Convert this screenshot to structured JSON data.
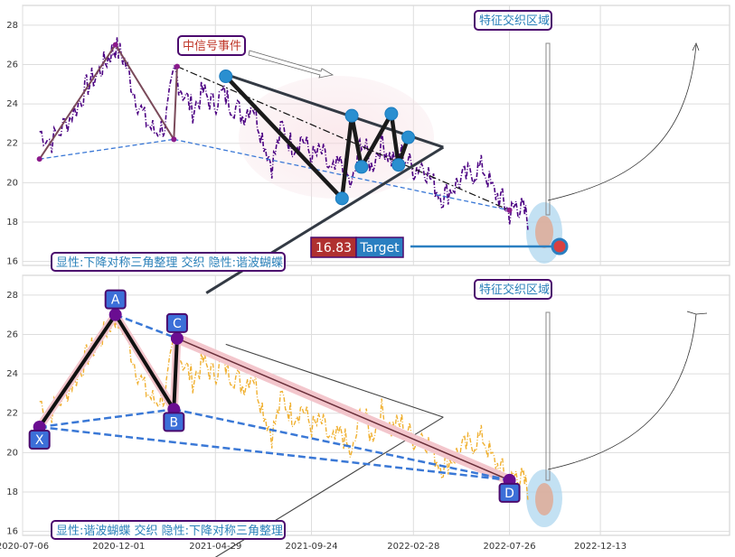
{
  "chart_data": [
    {
      "type": "line",
      "panel": "top",
      "ylim": [
        15.8,
        29
      ],
      "yticks": [
        16,
        18,
        20,
        22,
        24,
        26,
        28
      ],
      "xlim": [
        "2020-07-06",
        "2023-06-30"
      ],
      "grid": true,
      "series": [],
      "series_color": "#4b0082",
      "price_series": {
        "x": [
          "2020-08-01",
          "2020-08-20",
          "2020-09-10",
          "2020-09-30",
          "2020-10-15",
          "2020-11-01",
          "2020-11-15",
          "2020-11-26",
          "2020-12-10",
          "2020-12-25",
          "2021-01-10",
          "2021-01-25",
          "2021-02-10",
          "2021-02-25",
          "2021-03-10",
          "2021-03-25",
          "2021-04-10",
          "2021-04-25",
          "2021-05-10",
          "2021-05-25",
          "2021-06-10",
          "2021-06-25",
          "2021-07-10",
          "2021-07-25",
          "2021-08-10",
          "2021-08-25",
          "2021-09-10",
          "2021-09-24",
          "2021-10-10",
          "2021-10-25",
          "2021-11-10",
          "2021-11-25",
          "2021-12-10",
          "2021-12-25",
          "2022-01-10",
          "2022-01-25",
          "2022-02-10",
          "2022-02-28",
          "2022-03-15",
          "2022-03-31",
          "2022-04-15",
          "2022-04-30",
          "2022-05-15",
          "2022-05-31",
          "2022-06-15",
          "2022-06-30",
          "2022-07-15",
          "2022-07-26",
          "2022-08-05",
          "2022-08-15",
          "2022-08-25"
        ],
        "y": [
          22.6,
          22.1,
          23.0,
          24.0,
          25.0,
          25.6,
          26.4,
          26.9,
          26.2,
          24.6,
          23.2,
          22.6,
          22.9,
          25.6,
          24.6,
          23.7,
          24.6,
          24.0,
          24.5,
          24.0,
          23.4,
          24.1,
          22.4,
          20.9,
          22.8,
          21.9,
          22.3,
          21.3,
          21.5,
          20.4,
          21.0,
          19.7,
          22.3,
          20.8,
          22.1,
          21.2,
          21.5,
          20.7,
          21.0,
          19.9,
          19.3,
          19.8,
          20.2,
          20.5,
          20.8,
          19.6,
          19.1,
          18.4,
          18.9,
          18.6,
          18.1
        ]
      },
      "pattern_points": [
        {
          "x": "2020-08-01",
          "y": 21.2
        },
        {
          "x": "2020-11-26",
          "y": 27.0
        },
        {
          "x": "2021-02-24",
          "y": 22.2
        },
        {
          "x": "2021-03-01",
          "y": 25.9
        },
        {
          "x": "2022-07-26",
          "y": 18.6
        }
      ],
      "triangle_points": [
        {
          "x": "2021-05-15",
          "y": 25.4
        },
        {
          "x": "2021-11-10",
          "y": 19.2
        },
        {
          "x": "2021-11-25",
          "y": 23.4
        },
        {
          "x": "2021-12-10",
          "y": 20.8
        },
        {
          "x": "2022-01-25",
          "y": 23.5
        },
        {
          "x": "2022-02-05",
          "y": 20.9
        },
        {
          "x": "2022-02-20",
          "y": 22.3
        }
      ],
      "channel": {
        "upper": [
          {
            "x": "2021-05-15",
            "y": 25.5
          },
          {
            "x": "2022-04-15",
            "y": 21.8
          }
        ],
        "lower": [
          {
            "x": "2021-04-15",
            "y": 14.4
          },
          {
            "x": "2022-04-15",
            "y": 21.8
          }
        ]
      },
      "annotations": {
        "bottom_label": "显性:下降对称三角整理 交织 隐性:谐波蝴蝶",
        "signal_event": "中信号事件",
        "zone_label": "特征交织区域",
        "target_value": "16.83",
        "target_label": "Target"
      },
      "target_y": 16.83
    },
    {
      "type": "line",
      "panel": "bottom",
      "ylim": [
        15.8,
        29
      ],
      "yticks": [
        16,
        18,
        20,
        22,
        24,
        26,
        28
      ],
      "xlim": [
        "2020-07-06",
        "2023-06-30"
      ],
      "xticks": [
        "2020-07-06",
        "2020-12-01",
        "2021-04-29",
        "2021-09-24",
        "2022-02-28",
        "2022-07-26",
        "2022-12-13"
      ],
      "grid": true,
      "series": [],
      "series_color": "#f0b030",
      "harmonic_points": [
        {
          "label": "X",
          "x": "2020-08-01",
          "y": 21.3
        },
        {
          "label": "A",
          "x": "2020-11-26",
          "y": 27.0
        },
        {
          "label": "B",
          "x": "2021-02-24",
          "y": 22.2
        },
        {
          "label": "C",
          "x": "2021-03-01",
          "y": 25.8
        },
        {
          "label": "D",
          "x": "2022-07-26",
          "y": 18.6
        }
      ],
      "annotations": {
        "bottom_label": "显性:谐波蝴蝶 交织 隐性:下降对称三角整理",
        "zone_label": "特征交织区域"
      }
    }
  ]
}
